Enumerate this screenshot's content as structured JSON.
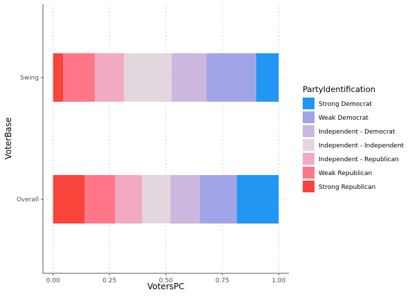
{
  "chart_data": {
    "type": "bar",
    "orientation": "horizontal",
    "stacked": true,
    "xlabel": "VotersPC",
    "ylabel": "VoterBase",
    "xlim": [
      -0.045,
      1.045
    ],
    "xticks": [
      0.0,
      0.25,
      0.5,
      0.75,
      1.0
    ],
    "xtick_labels": [
      "0.00",
      "0.25",
      "0.50",
      "0.75",
      "1.00"
    ],
    "categories": [
      "Overall",
      "Swing"
    ],
    "grid": true,
    "legend": {
      "title": "PartyIdentification",
      "position": "right"
    },
    "series": [
      {
        "name": "Strong Republican",
        "color": "#F8443A",
        "values": [
          0.14,
          0.045
        ]
      },
      {
        "name": "Weak Republican",
        "color": "#FE7688",
        "values": [
          0.135,
          0.14
        ]
      },
      {
        "name": "Independent - Republican",
        "color": "#F2A9C2",
        "values": [
          0.12,
          0.13
        ]
      },
      {
        "name": "Independent - Independent",
        "color": "#E2D7DF",
        "values": [
          0.125,
          0.21
        ]
      },
      {
        "name": "Independent - Democrat",
        "color": "#CCB7DF",
        "values": [
          0.13,
          0.155
        ]
      },
      {
        "name": "Weak Democrat",
        "color": "#A1A4E7",
        "values": [
          0.165,
          0.22
        ]
      },
      {
        "name": "Strong Democrat",
        "color": "#2196F3",
        "values": [
          0.185,
          0.1
        ]
      }
    ]
  }
}
